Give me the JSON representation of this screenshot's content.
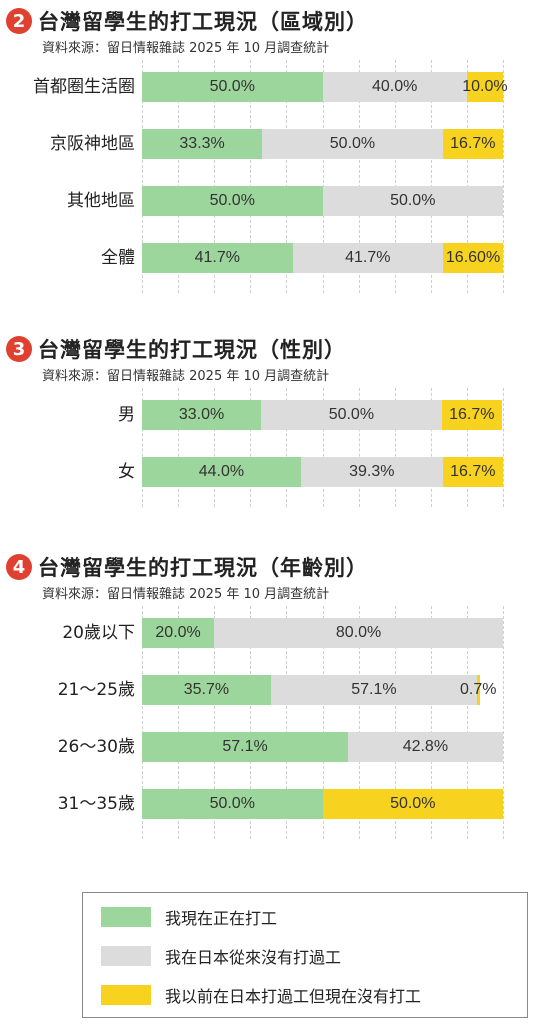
{
  "colors": {
    "working_now": "#9cd69c",
    "never_worked": "#dcdcdc",
    "worked_before": "#f7d21e",
    "badge": "#e0402f"
  },
  "legend": [
    {
      "key": "working_now",
      "label": "我現在正在打工"
    },
    {
      "key": "never_worked",
      "label": "我在日本從來沒有打過工"
    },
    {
      "key": "worked_before",
      "label": "我以前在日本打過工但現在沒有打工"
    }
  ],
  "chart_data": [
    {
      "type": "bar",
      "orientation": "horizontal",
      "stacked": true,
      "number": "2",
      "title": "台灣留學生的打工現況（區域別）",
      "source": "資料來源：留日情報雜誌 2025 年 10 月調查統計",
      "grid": true,
      "categories": [
        "首都圈生活圈",
        "京阪神地區",
        "其他地區",
        "全體"
      ],
      "series": [
        {
          "key": "working_now",
          "values": [
            50.0,
            33.3,
            50.0,
            41.7
          ],
          "labels": [
            "50.0%",
            "33.3%",
            "50.0%",
            "41.7%"
          ]
        },
        {
          "key": "never_worked",
          "values": [
            40.0,
            50.0,
            50.0,
            41.7
          ],
          "labels": [
            "40.0%",
            "50.0%",
            "50.0%",
            "41.7%"
          ]
        },
        {
          "key": "worked_before",
          "values": [
            10.0,
            16.7,
            0,
            16.6
          ],
          "labels": [
            "10.0%",
            "16.7%",
            "",
            "16.60%"
          ]
        }
      ]
    },
    {
      "type": "bar",
      "orientation": "horizontal",
      "stacked": true,
      "number": "3",
      "title": "台灣留學生的打工現況（性別）",
      "source": "資料來源：留日情報雜誌 2025 年 10 月調查統計",
      "grid": true,
      "categories": [
        "男",
        "女"
      ],
      "series": [
        {
          "key": "working_now",
          "values": [
            33.0,
            44.0
          ],
          "labels": [
            "33.0%",
            "44.0%"
          ]
        },
        {
          "key": "never_worked",
          "values": [
            50.0,
            39.3
          ],
          "labels": [
            "50.0%",
            "39.3%"
          ]
        },
        {
          "key": "worked_before",
          "values": [
            16.7,
            16.7
          ],
          "labels": [
            "16.7%",
            "16.7%"
          ]
        }
      ]
    },
    {
      "type": "bar",
      "orientation": "horizontal",
      "stacked": true,
      "number": "4",
      "title": "台灣留學生的打工現況（年齡別）",
      "source": "資料來源：留日情報雜誌 2025 年 10 月調查統計",
      "grid": true,
      "categories": [
        "20歲以下",
        "21～25歲",
        "26～30歲",
        "31～35歲"
      ],
      "series": [
        {
          "key": "working_now",
          "values": [
            20.0,
            35.7,
            57.1,
            50.0
          ],
          "labels": [
            "20.0%",
            "35.7%",
            "57.1%",
            "50.0%"
          ]
        },
        {
          "key": "never_worked",
          "values": [
            80.0,
            57.1,
            42.8,
            0
          ],
          "labels": [
            "80.0%",
            "57.1%",
            "42.8%",
            ""
          ]
        },
        {
          "key": "worked_before",
          "values": [
            0,
            0.7,
            0,
            50.0
          ],
          "labels": [
            "",
            "0.7%",
            "",
            "50.0%"
          ]
        }
      ]
    }
  ]
}
